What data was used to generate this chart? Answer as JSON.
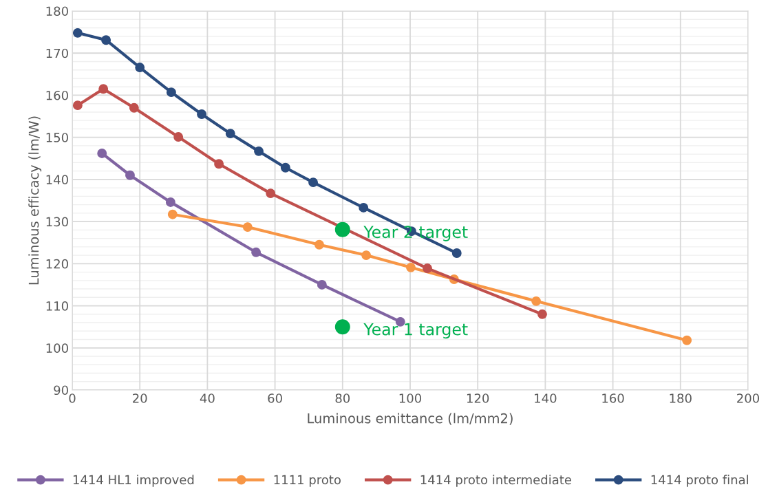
{
  "chart_data": {
    "type": "line",
    "xlabel": "Luminous emittance (lm/mm2)",
    "ylabel": "Luminous efficacy (lm/W)",
    "xlim": [
      0,
      200
    ],
    "xticks": [
      0,
      20,
      40,
      60,
      80,
      100,
      120,
      140,
      160,
      180,
      200
    ],
    "ylim": [
      90,
      180
    ],
    "yticks": [
      90,
      100,
      110,
      120,
      130,
      140,
      150,
      160,
      170,
      180
    ],
    "grid": true,
    "legend": "bottom",
    "marker": "circle",
    "line_style": "solid",
    "series": [
      {
        "name": "1414 HL1 improved",
        "color": "#8064a2",
        "x": [
          8.8,
          17.1,
          29.1,
          54.4,
          73.9,
          97.1
        ],
        "values": [
          146.2,
          141.0,
          134.6,
          122.7,
          115.0,
          106.2
        ]
      },
      {
        "name": "1111 proto",
        "color": "#f79646",
        "x": [
          29.7,
          51.9,
          73.1,
          87.0,
          100.2,
          113.0,
          137.3,
          181.9
        ],
        "values": [
          131.7,
          128.7,
          124.5,
          122.0,
          119.1,
          116.3,
          111.1,
          101.8
        ]
      },
      {
        "name": "1414 proto intermediate",
        "color": "#c0504d",
        "x": [
          1.6,
          9.2,
          18.3,
          31.4,
          43.4,
          58.7,
          105.1,
          139.1
        ],
        "values": [
          157.6,
          161.5,
          157.0,
          150.1,
          143.7,
          136.7,
          118.9,
          108.0
        ]
      },
      {
        "name": "1414 proto final",
        "color": "#2b4c7e",
        "x": [
          1.6,
          10.0,
          20.0,
          29.3,
          38.3,
          46.8,
          55.2,
          63.1,
          71.3,
          86.2,
          100.4,
          113.8
        ],
        "values": [
          174.8,
          173.1,
          166.6,
          160.7,
          155.5,
          150.9,
          146.7,
          142.8,
          139.3,
          133.3,
          127.7,
          122.5
        ]
      },
      {
        "type": "scatter",
        "color": "#00b050",
        "x": [
          80,
          80
        ],
        "values": [
          128.1,
          105.0
        ]
      }
    ],
    "annotations": [
      {
        "text": "Year 2 target",
        "x": 80,
        "y": 128.1
      },
      {
        "text": "Year 1 target",
        "x": 80,
        "y": 105.0
      }
    ]
  }
}
